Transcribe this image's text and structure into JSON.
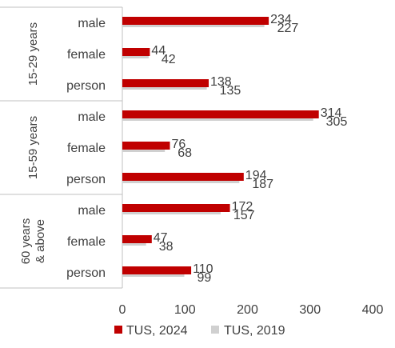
{
  "chart_data": {
    "type": "bar",
    "orientation": "horizontal",
    "groups": [
      {
        "label": "15-29 years",
        "categories": [
          "male",
          "female",
          "person"
        ]
      },
      {
        "label": "15-59 years",
        "categories": [
          "male",
          "female",
          "person"
        ]
      },
      {
        "label": "60 years & above",
        "categories": [
          "male",
          "female",
          "person"
        ]
      }
    ],
    "series": [
      {
        "name": "TUS, 2024",
        "color": "#c00000",
        "values": [
          234,
          44,
          138,
          314,
          76,
          194,
          172,
          47,
          110
        ]
      },
      {
        "name": "TUS, 2019",
        "color": "#d0d0d0",
        "values": [
          227,
          42,
          135,
          305,
          68,
          187,
          157,
          38,
          99
        ]
      }
    ],
    "xlim": [
      0,
      400
    ],
    "xticks": [
      0,
      100,
      200,
      300,
      400
    ],
    "grid": false,
    "legend": "bottom"
  }
}
